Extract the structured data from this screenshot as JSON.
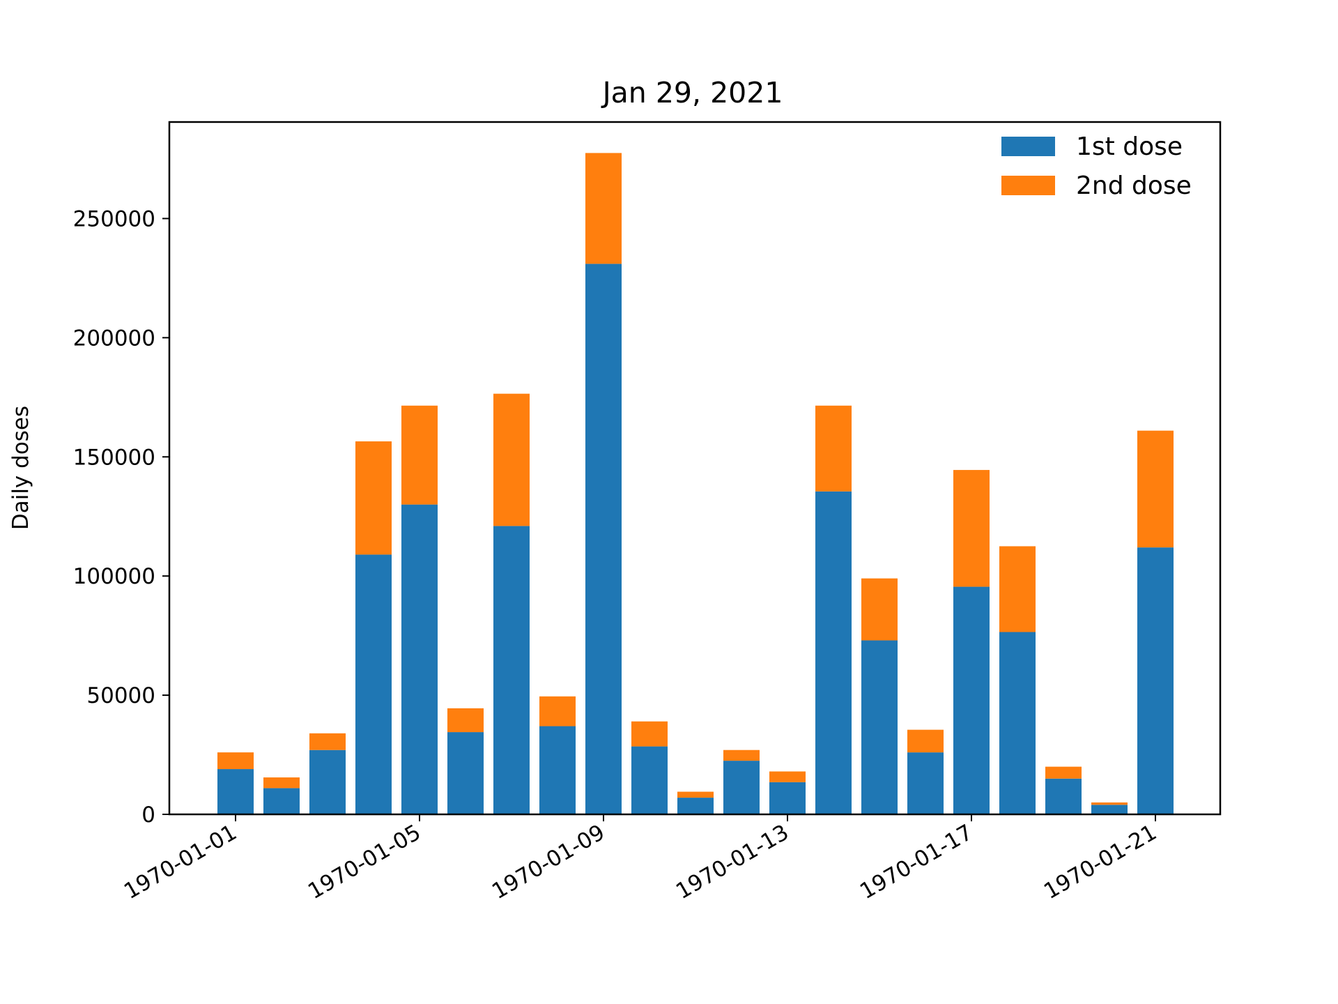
{
  "chart_data": {
    "type": "bar",
    "stacked": true,
    "title": "Jan 29, 2021",
    "xlabel": "",
    "ylabel": "Daily doses",
    "x": [
      "1970-01-01",
      "1970-01-02",
      "1970-01-03",
      "1970-01-04",
      "1970-01-05",
      "1970-01-06",
      "1970-01-07",
      "1970-01-08",
      "1970-01-09",
      "1970-01-10",
      "1970-01-11",
      "1970-01-12",
      "1970-01-13",
      "1970-01-14",
      "1970-01-15",
      "1970-01-16",
      "1970-01-17",
      "1970-01-18",
      "1970-01-19",
      "1970-01-20",
      "1970-01-21"
    ],
    "series": [
      {
        "name": "1st dose",
        "color": "#1f77b4",
        "values": [
          19000,
          11000,
          27000,
          109000,
          130000,
          34500,
          121000,
          37000,
          231000,
          28500,
          7000,
          22500,
          13500,
          135500,
          73000,
          26000,
          95500,
          76500,
          15000,
          4000,
          112000
        ]
      },
      {
        "name": "2nd dose",
        "color": "#ff7f0e",
        "values": [
          7000,
          4500,
          7000,
          47500,
          41500,
          10000,
          55500,
          12500,
          46500,
          10500,
          2500,
          4500,
          4500,
          36000,
          26000,
          9500,
          49000,
          36000,
          5000,
          1000,
          49000
        ]
      }
    ],
    "xticks": [
      "1970-01-01",
      "1970-01-05",
      "1970-01-09",
      "1970-01-13",
      "1970-01-17",
      "1970-01-21"
    ],
    "yticks": [
      0,
      50000,
      100000,
      150000,
      200000,
      250000
    ],
    "ylim": [
      0,
      290500
    ],
    "legend_position": "top-right",
    "grid": false
  }
}
